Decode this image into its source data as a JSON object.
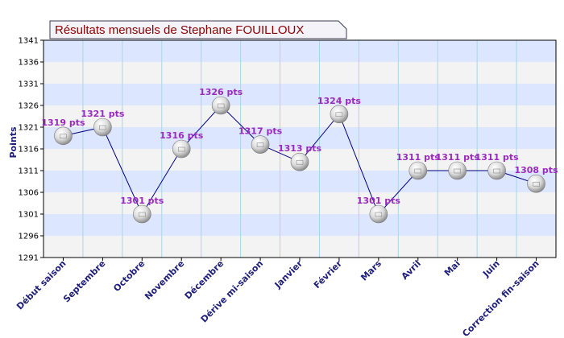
{
  "chart_data": {
    "type": "line",
    "title": "Résultats mensuels de Stephane FOUILLOUX",
    "ylabel": "Points",
    "xlabel": "",
    "ylim": [
      1291,
      1341
    ],
    "yticks": [
      1291,
      1296,
      1301,
      1306,
      1311,
      1316,
      1321,
      1326,
      1331,
      1336,
      1341
    ],
    "categories": [
      "Début saison",
      "Septembre",
      "Octobre",
      "Novembre",
      "Décembre",
      "Dérive mi-saison",
      "Janvier",
      "Février",
      "Mars",
      "Avril",
      "Mai",
      "Juin",
      "Correction fin-saison"
    ],
    "series": [
      {
        "values": [
          1319,
          1321,
          1301,
          1316,
          1326,
          1317,
          1313,
          1324,
          1301,
          1311,
          1311,
          1311,
          1308
        ],
        "labels": [
          "1319 pts",
          "1321 pts",
          "1301 pts",
          "1316 pts",
          "1326 pts",
          "1317 pts",
          "1313 pts",
          "1324 pts",
          "1301 pts",
          "1311 pts",
          "1311 pts",
          "1311 pts",
          "1308 pts"
        ]
      }
    ],
    "grid": true,
    "legend": "none",
    "colors": {
      "band_light": "#f3f3f3",
      "band_blue": "#dde6ff",
      "line": "#000080",
      "label": "#9b2bbf",
      "title": "#8b0000",
      "axis_text": "#1f1f7a"
    }
  }
}
